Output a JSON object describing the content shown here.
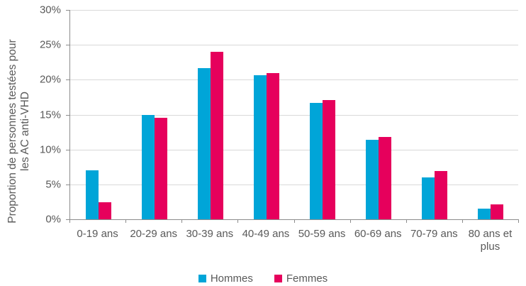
{
  "chart_data": {
    "type": "bar",
    "title": "",
    "categories": [
      "0-19 ans",
      "20-29 ans",
      "30-39 ans",
      "40-49 ans",
      "50-59 ans",
      "60-69 ans",
      "70-79 ans",
      "80 ans et plus"
    ],
    "series": [
      {
        "name": "Hommes",
        "color": "#00A5D8",
        "values": [
          7.0,
          15.0,
          21.7,
          20.6,
          16.7,
          11.4,
          6.0,
          1.5
        ]
      },
      {
        "name": "Femmes",
        "color": "#E6005C",
        "values": [
          2.4,
          14.5,
          24.0,
          21.0,
          17.1,
          11.8,
          6.9,
          2.1
        ]
      }
    ],
    "xlabel": "",
    "ylabel": "Proportion de personnes testées pour les AC anti-VHD",
    "ylabel_lines": [
      "Proportion de personnes testées pour",
      "les AC anti-VHD"
    ],
    "ylim": [
      0,
      30
    ],
    "ytick_step": 5,
    "ytick_labels": [
      "0%",
      "5%",
      "10%",
      "15%",
      "20%",
      "25%",
      "30%"
    ],
    "grid": true,
    "legend_position": "bottom"
  },
  "colors": {
    "axis": "#8C8C8C",
    "gridline": "#D9D9D9",
    "text": "#595959",
    "background": "#FFFFFF"
  }
}
